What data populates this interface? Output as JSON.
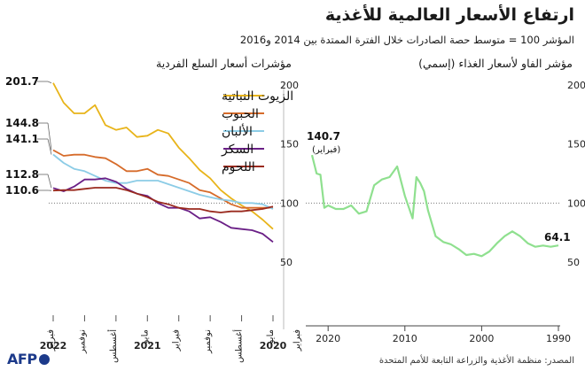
{
  "title": "ارتفاع الأسعار العالمية للأغذية",
  "subtitle": "المؤشر 100 = متوسط حصة الصادرات خلال الفترة الممتدة بين 2014 و2016",
  "source": "المصدر: منظمة الأغذية والزراعة التابعة للأمم المتحدة",
  "logo": "AFP",
  "colors": {
    "vegetable_oils": "#e8b41a",
    "cereals": "#d66b2a",
    "dairy": "#8ccce6",
    "sugar": "#6a1f86",
    "meat": "#9a2a1e",
    "fao_index": "#8fe08f"
  },
  "chart_data": [
    {
      "type": "line",
      "title": "مؤشرات أسعار السلع الفردية",
      "x_tick_labels": [
        "مايو",
        "أغسطس",
        "نوفمبر",
        "فبراير",
        "مايو",
        "أغسطس",
        "نوفمبر",
        "فبراير"
      ],
      "year_labels": [
        "2020",
        "2021",
        "2022"
      ],
      "ylim": [
        50,
        200
      ],
      "y_ticks": [
        50,
        100,
        150,
        200
      ],
      "reference_line": 100,
      "x": [
        "2020-05",
        "2020-06",
        "2020-07",
        "2020-08",
        "2020-09",
        "2020-10",
        "2020-11",
        "2020-12",
        "2021-01",
        "2021-02",
        "2021-03",
        "2021-04",
        "2021-05",
        "2021-06",
        "2021-07",
        "2021-08",
        "2021-09",
        "2021-10",
        "2021-11",
        "2021-12",
        "2022-01",
        "2022-02"
      ],
      "series": [
        {
          "name": "الزيوت النباتية",
          "color_key": "vegetable_oils",
          "end_label": "201.7",
          "values": [
            78,
            86,
            93,
            98,
            104,
            111,
            121,
            128,
            138,
            147,
            159,
            162,
            157,
            156,
            164,
            162,
            166,
            183,
            176,
            176,
            185,
            201.7
          ]
        },
        {
          "name": "الحبوب",
          "color_key": "cereals",
          "end_label": "144.8",
          "values": [
            96,
            96,
            96,
            96,
            99,
            104,
            109,
            111,
            117,
            120,
            123,
            124,
            129,
            127,
            127,
            133,
            138,
            139,
            141,
            141,
            140,
            144.8
          ]
        },
        {
          "name": "الألبان",
          "color_key": "dairy",
          "end_label": "141.1",
          "values": [
            95,
            99,
            100,
            100,
            102,
            103,
            105,
            107,
            110,
            113,
            116,
            119,
            119,
            119,
            117,
            117,
            119,
            123,
            127,
            129,
            134,
            141.1
          ]
        },
        {
          "name": "السكر",
          "color_key": "sugar",
          "end_label": "112.8",
          "values": [
            67,
            74,
            77,
            78,
            79,
            84,
            88,
            87,
            93,
            96,
            96,
            100,
            106,
            108,
            112,
            118,
            121,
            120,
            120,
            114,
            110,
            112.8
          ]
        },
        {
          "name": "اللحوم",
          "color_key": "meat",
          "end_label": "110.6",
          "values": [
            97,
            95,
            94,
            93,
            93,
            92,
            93,
            95,
            95,
            96,
            99,
            101,
            105,
            108,
            111,
            113,
            113,
            113,
            112,
            111,
            111,
            110.6
          ]
        }
      ]
    },
    {
      "type": "line",
      "title": "مؤشر الفاو لأسعار الغذاء (إسمي)",
      "series_color_key": "fao_index",
      "xlim": [
        1990,
        2022.2
      ],
      "x_ticks": [
        1990,
        2000,
        2010,
        2020
      ],
      "x_tick_labels": [
        "1990",
        "2000",
        "2010",
        "2020"
      ],
      "ylim": [
        50,
        200
      ],
      "y_ticks": [
        50,
        100,
        150,
        200
      ],
      "reference_line": 100,
      "annotations": [
        {
          "text": "140.7",
          "sub": "(فبراير)",
          "at": 2022.1
        },
        {
          "text": "64.1",
          "at": 1990.1
        }
      ],
      "x": [
        1990,
        1991,
        1992,
        1993,
        1994,
        1995,
        1996,
        1997,
        1998,
        1999,
        2000,
        2001,
        2002,
        2003,
        2004,
        2005,
        2006,
        2007,
        2007.5,
        2008,
        2008.5,
        2009,
        2010,
        2011,
        2012,
        2013,
        2014,
        2015,
        2016,
        2017,
        2018,
        2019,
        2020,
        2020.5,
        2021,
        2021.5,
        2022.1
      ],
      "values": [
        64.1,
        63,
        64,
        63,
        66,
        72,
        76,
        72,
        66,
        59,
        55,
        57,
        56,
        61,
        65,
        67,
        72,
        94,
        110,
        117,
        122,
        87,
        106,
        131,
        122,
        120,
        115,
        93,
        91,
        98,
        95,
        95,
        98,
        96,
        124,
        125,
        140.7
      ]
    }
  ]
}
